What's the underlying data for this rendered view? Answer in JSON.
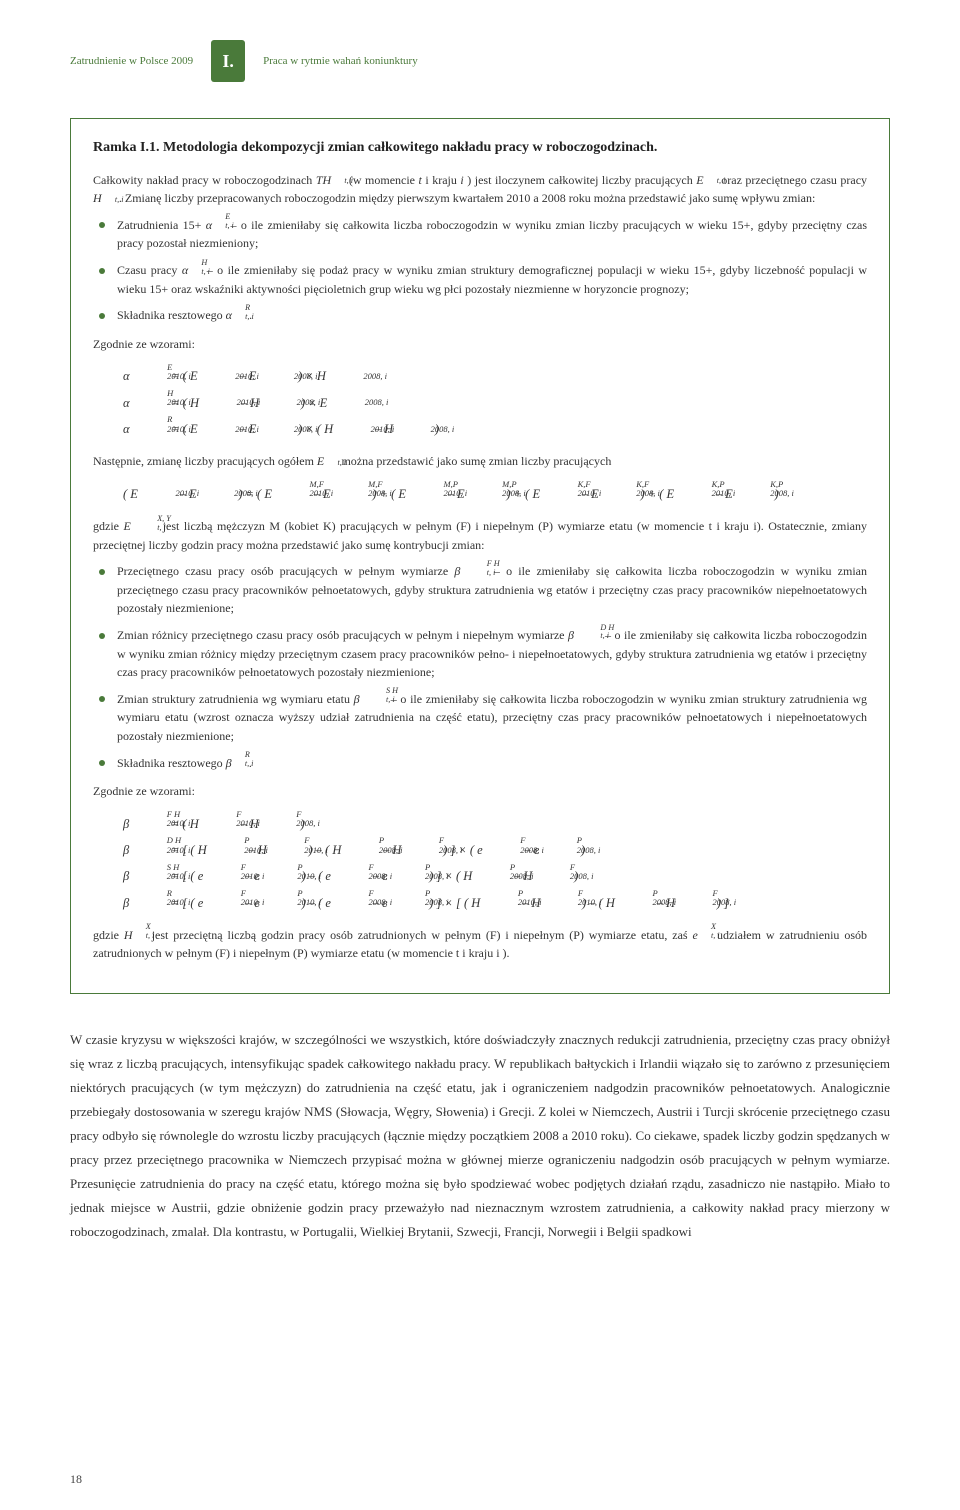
{
  "header": {
    "left": "Zatrudnienie w Polsce 2009",
    "badge": "I.",
    "right": "Praca w rytmie wahań koniunktury"
  },
  "box": {
    "title": "Ramka I.1. Metodologia dekompozycji zmian całkowitego nakładu pracy w roboczogodzinach.",
    "intro_pre": "Całkowity nakład pracy w roboczogodzinach ",
    "intro_mid1": " (w momencie ",
    "intro_mid2": " i kraju ",
    "intro_mid3": ") jest iloczynem całkowitej liczby pracujących ",
    "intro_mid4": " oraz przeciętnego czasu pracy ",
    "intro_mid5": " . Zmianę liczby przepracowanych roboczogodzin między pierwszym kwartałem 2010 a 2008 roku można przedstawić jako sumę wpływu zmian:",
    "b1_pre": "Zatrudnienia 15+ ",
    "b1_post": " – o ile zmieniłaby się całkowita liczba roboczogodzin w wyniku zmian liczby pracujących w wieku 15+, gdyby przeciętny czas pracy pozostał niezmieniony;",
    "b2_pre": "Czasu pracy ",
    "b2_post": " – o ile zmieniłaby się podaż pracy w wyniku zmian struktury demograficznej populacji w wieku 15+, gdyby liczebność populacji w wieku 15+ oraz wskaźniki aktywności pięcioletnich grup wieku wg płci pozostały niezmienne w horyzoncie prognozy;",
    "b3_pre": "Składnika resztowego ",
    "b3_post": " .",
    "zgodnie": "Zgodnie ze wzorami:",
    "mid_para_pre": "Następnie, zmianę liczby pracujących ogółem ",
    "mid_para_post": " można przedstawić jako sumę zmian liczby pracujących",
    "gdzie1_pre": "gdzie ",
    "gdzie1_post": " jest liczbą mężczyzn M (kobiet K) pracujących w pełnym (F) i niepełnym (P) wymiarze etatu (w momencie t i kraju i). Ostatecznie, zmiany przeciętnej liczby godzin pracy można przedstawić jako sumę kontrybucji zmian:",
    "c1_pre": "Przeciętnego czasu pracy osób pracujących w pełnym wymiarze ",
    "c1_post": " – o ile zmieniłaby się całkowita liczba roboczogodzin w wyniku zmian przeciętnego czasu pracy pracowników pełnoetatowych, gdyby struktura zatrudnienia wg etatów i przeciętny czas pracy pracowników niepełnoetatowych pozostały niezmienione;",
    "c2_pre": "Zmian różnicy przeciętnego czasu pracy osób pracujących w pełnym i niepełnym wymiarze ",
    "c2_post": " – o ile zmieniłaby się całkowita liczba roboczogodzin w wyniku zmian różnicy między przeciętnym czasem pracy pracowników pełno- i niepełnoetatowych, gdyby struktura zatrudnienia wg etatów i przeciętny czas pracy pracowników pełnoetatowych pozostały niezmienione;",
    "c3_pre": "Zmian struktury zatrudnienia wg wymiaru etatu ",
    "c3_post": " – o ile zmieniłaby się całkowita liczba roboczogodzin w wyniku zmian struktury zatrudnienia wg wymiaru etatu (wzrost oznacza wyższy udział zatrudnienia na część etatu), przeciętny czas pracy pracowników pełnoetatowych i niepełnoetatowych pozostały niezmienione;",
    "c4_pre": "Składnika resztowego ",
    "c4_post": " .",
    "gdzie2_pre": "gdzie ",
    "gdzie2_mid": " jest przeciętną liczbą godzin pracy osób zatrudnionych w pełnym (F) i niepełnym (P) wymiarze etatu, zaś ",
    "gdzie2_post": " udziałem w zatrudnieniu osób zatrudnionych w pełnym (F) i niepełnym (P) wymiarze etatu (w momencie t i kraju i )."
  },
  "body": "W czasie kryzysu w większości krajów, w szczególności we wszystkich, które doświadczyły znacznych redukcji zatrudnienia, przeciętny czas pracy obniżył się wraz z liczbą pracujących, intensyfikując spadek całkowitego nakładu pracy. W republikach bałtyckich i Irlandii wiązało się to zarówno z przesunięciem niektórych pracujących (w tym mężczyzn) do zatrudnienia na część etatu, jak i ograniczeniem nadgodzin pracowników pełnoetatowych. Analogicznie przebiegały dostosowania w szeregu krajów NMS (Słowacja, Węgry, Słowenia) i Grecji. Z kolei w Niemczech, Austrii i Turcji skrócenie przeciętnego czasu pracy odbyło się równolegle do wzrostu liczby pracujących (łącznie między początkiem 2008 a 2010 roku). Co ciekawe, spadek liczby godzin spędzanych w pracy przez przeciętnego pracownika w Niemczech przypisać można w głównej mierze ograniczeniu nadgodzin osób pracujących w pełnym wymiarze. Przesunięcie zatrudnienia do pracy na część etatu, którego można się było spodziewać wobec podjętych działań rządu, zasadniczo nie nastąpiło. Miało to jednak miejsce w Austrii, gdzie obniżenie godzin pracy przeważyło nad nieznacznym wzrostem zatrudnienia, a całkowity nakład pracy mierzony w roboczogodzinach, zmalał. Dla kontrastu, w Portugalii, Wielkiej Brytanii, Szwecji, Francji, Norwegii i Belgii spadkowi",
  "pagenum": "18",
  "colors": {
    "accent": "#4a7a3a",
    "text": "#333333",
    "border": "#4a7a3a",
    "bg": "#ffffff"
  }
}
